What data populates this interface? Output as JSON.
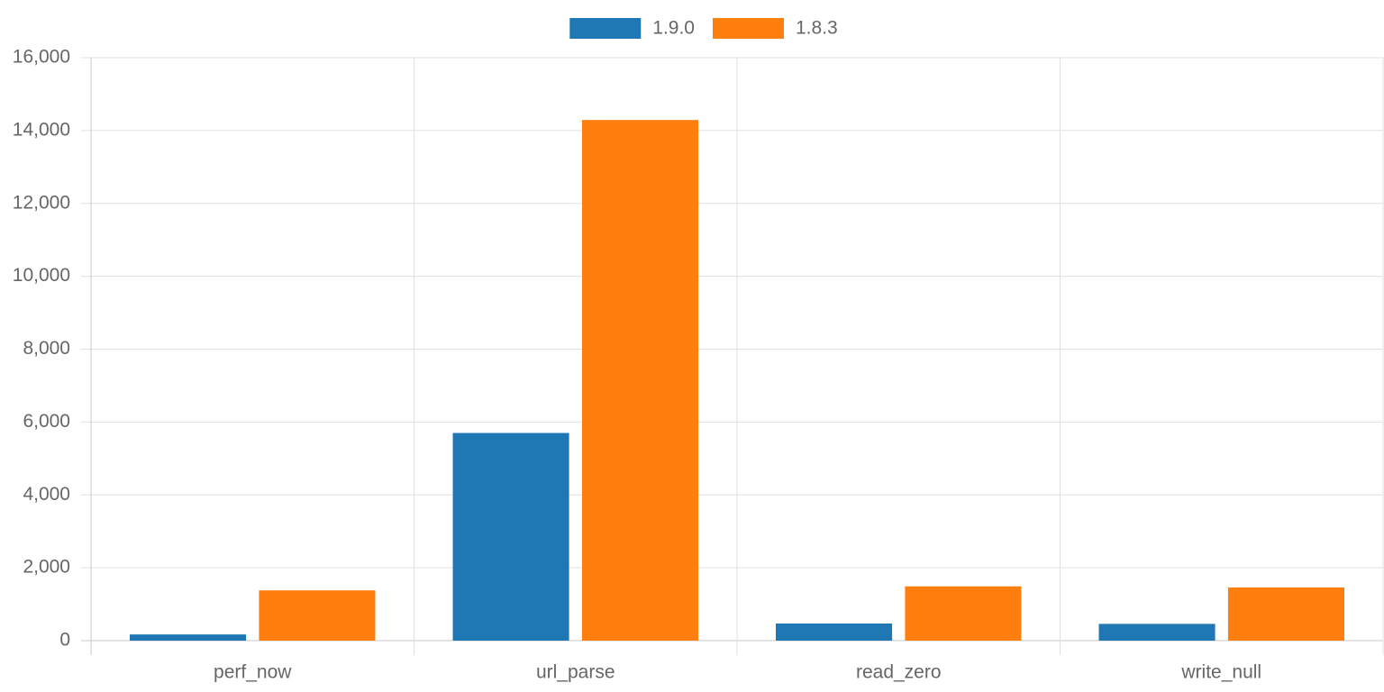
{
  "chart_data": {
    "type": "bar",
    "categories": [
      "perf_now",
      "url_parse",
      "read_zero",
      "write_null"
    ],
    "series": [
      {
        "name": "1.9.0",
        "color": "#1f77b4",
        "values": [
          170,
          5700,
          470,
          460
        ]
      },
      {
        "name": "1.8.3",
        "color": "#ff7f0e",
        "values": [
          1380,
          14290,
          1490,
          1460
        ]
      }
    ],
    "ylim": [
      0,
      16000
    ],
    "yticks": [
      0,
      {
        "value": 2000,
        "label": "2,000"
      },
      {
        "value": 4000,
        "label": "4,000"
      },
      {
        "value": 6000,
        "label": "6,000"
      },
      {
        "value": 8000,
        "label": "8,000"
      },
      {
        "value": 10000,
        "label": "10,000"
      },
      {
        "value": 12000,
        "label": "12,000"
      },
      {
        "value": 14000,
        "label": "14,000"
      },
      {
        "value": 16000,
        "label": "16,000"
      }
    ],
    "grid": true,
    "legend": "top"
  }
}
